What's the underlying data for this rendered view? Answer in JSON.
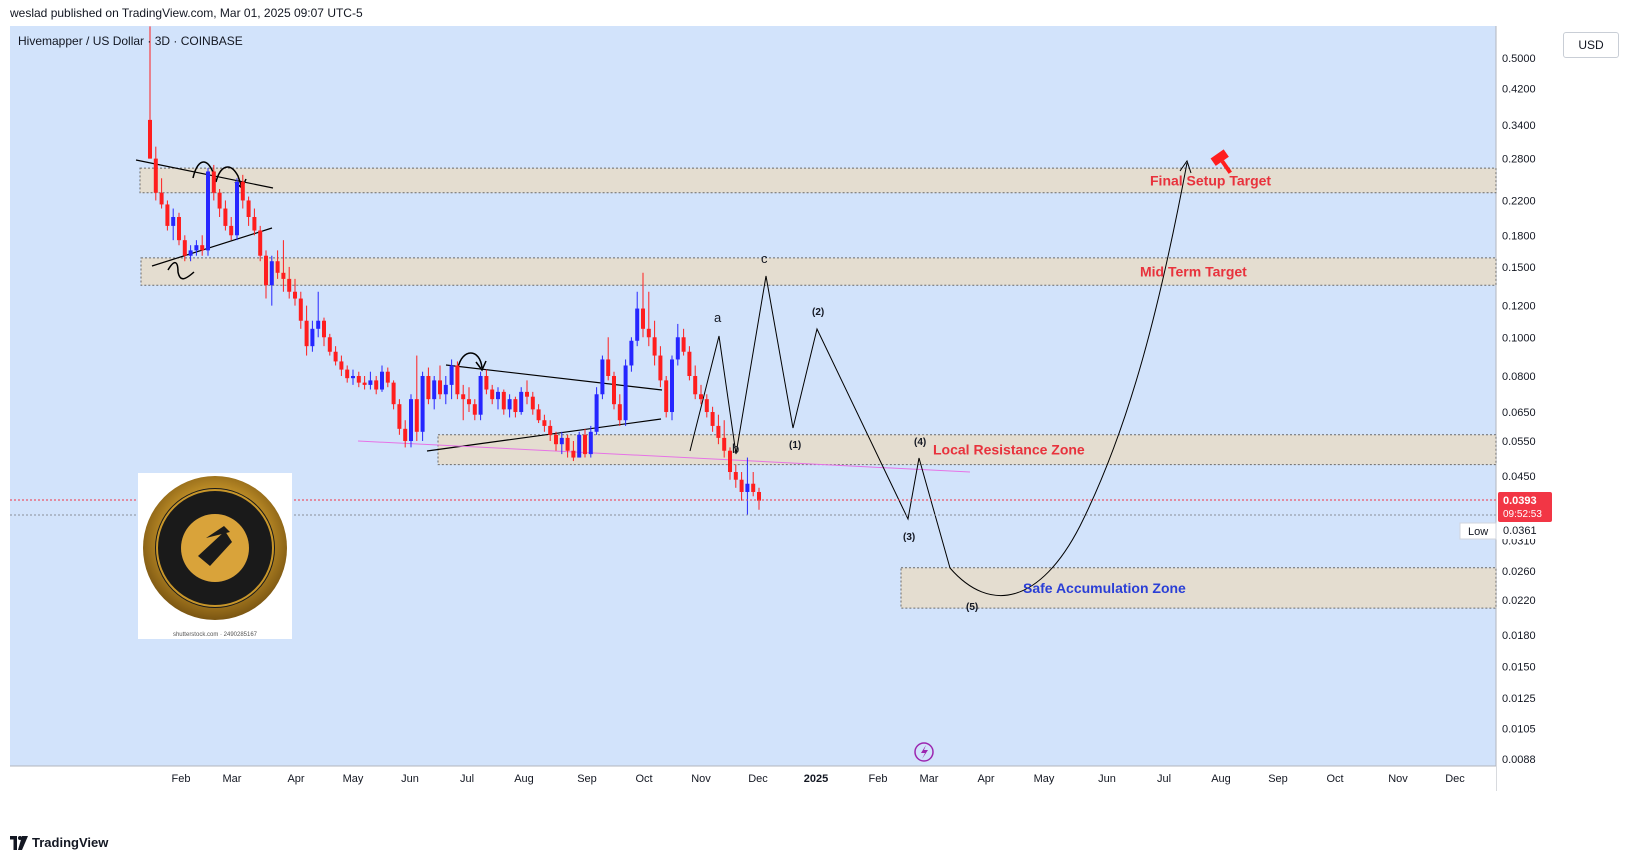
{
  "header": {
    "published": "weslad published on TradingView.com, Mar 01, 2025 09:07 UTC-5"
  },
  "symbol": {
    "line": "Hivemapper / US Dollar · 3D · COINBASE"
  },
  "currency": "USD",
  "footer": {
    "brand": "TradingView"
  },
  "price": {
    "current": "0.0393",
    "countdown": "09:52:53",
    "low_label": "Low",
    "low_value": "0.0361"
  },
  "colors": {
    "bg": "#d2e3fb",
    "up": "#2626ff",
    "down": "#ff1e1e",
    "zone": "#e6dccb",
    "price_tag": "#f23645",
    "accent_purple": "#9c27b0"
  },
  "chart_data": {
    "type": "candlestick",
    "y_scale": "log",
    "y_ticks": [
      "0.5000",
      "0.4200",
      "0.3400",
      "0.2800",
      "0.2200",
      "0.1800",
      "0.1500",
      "0.1200",
      "0.1000",
      "0.0800",
      "0.0650",
      "0.0550",
      "0.0450",
      "0.0310",
      "0.0260",
      "0.0220",
      "0.0180",
      "0.0150",
      "0.0125",
      "0.0105",
      "0.0088"
    ],
    "x_ticks": [
      "Feb",
      "Mar",
      "Apr",
      "May",
      "Jun",
      "Jul",
      "Aug",
      "Sep",
      "Oct",
      "Nov",
      "Dec",
      "2025",
      "Feb",
      "Mar",
      "Apr",
      "May",
      "Jun",
      "Jul",
      "Aug",
      "Sep",
      "Oct",
      "Nov",
      "Dec"
    ],
    "zones": [
      {
        "label": "Final Setup Target",
        "low": 0.23,
        "high": 0.265
      },
      {
        "label": "Mid Term Target",
        "low": 0.135,
        "high": 0.158
      },
      {
        "label": "Local Resistance Zone",
        "low": 0.048,
        "high": 0.057
      },
      {
        "label": "Safe Accumulation Zone",
        "low": 0.021,
        "high": 0.0265
      }
    ],
    "wave_labels": [
      "a",
      "b",
      "c",
      "(1)",
      "(2)",
      "(3)",
      "(4)",
      "(5)"
    ],
    "candles": [
      {
        "o": 0.35,
        "h": 0.6,
        "l": 0.28,
        "c": 0.28
      },
      {
        "o": 0.28,
        "h": 0.3,
        "l": 0.22,
        "c": 0.23
      },
      {
        "o": 0.23,
        "h": 0.25,
        "l": 0.21,
        "c": 0.215
      },
      {
        "o": 0.215,
        "h": 0.22,
        "l": 0.185,
        "c": 0.19
      },
      {
        "o": 0.19,
        "h": 0.21,
        "l": 0.175,
        "c": 0.2
      },
      {
        "o": 0.2,
        "h": 0.205,
        "l": 0.17,
        "c": 0.175
      },
      {
        "o": 0.175,
        "h": 0.18,
        "l": 0.155,
        "c": 0.16
      },
      {
        "o": 0.16,
        "h": 0.17,
        "l": 0.155,
        "c": 0.165
      },
      {
        "o": 0.165,
        "h": 0.175,
        "l": 0.16,
        "c": 0.17
      },
      {
        "o": 0.17,
        "h": 0.18,
        "l": 0.16,
        "c": 0.165
      },
      {
        "o": 0.165,
        "h": 0.265,
        "l": 0.16,
        "c": 0.26
      },
      {
        "o": 0.26,
        "h": 0.27,
        "l": 0.22,
        "c": 0.23
      },
      {
        "o": 0.23,
        "h": 0.235,
        "l": 0.2,
        "c": 0.21
      },
      {
        "o": 0.21,
        "h": 0.22,
        "l": 0.185,
        "c": 0.19
      },
      {
        "o": 0.19,
        "h": 0.2,
        "l": 0.175,
        "c": 0.18
      },
      {
        "o": 0.18,
        "h": 0.25,
        "l": 0.175,
        "c": 0.245
      },
      {
        "o": 0.245,
        "h": 0.255,
        "l": 0.21,
        "c": 0.22
      },
      {
        "o": 0.22,
        "h": 0.225,
        "l": 0.19,
        "c": 0.2
      },
      {
        "o": 0.2,
        "h": 0.21,
        "l": 0.18,
        "c": 0.185
      },
      {
        "o": 0.185,
        "h": 0.19,
        "l": 0.155,
        "c": 0.16
      },
      {
        "o": 0.16,
        "h": 0.165,
        "l": 0.125,
        "c": 0.135
      },
      {
        "o": 0.135,
        "h": 0.16,
        "l": 0.12,
        "c": 0.155
      },
      {
        "o": 0.155,
        "h": 0.165,
        "l": 0.14,
        "c": 0.145
      },
      {
        "o": 0.145,
        "h": 0.175,
        "l": 0.13,
        "c": 0.14
      },
      {
        "o": 0.14,
        "h": 0.15,
        "l": 0.125,
        "c": 0.13
      },
      {
        "o": 0.13,
        "h": 0.14,
        "l": 0.12,
        "c": 0.125
      },
      {
        "o": 0.125,
        "h": 0.13,
        "l": 0.105,
        "c": 0.11
      },
      {
        "o": 0.11,
        "h": 0.12,
        "l": 0.09,
        "c": 0.095
      },
      {
        "o": 0.095,
        "h": 0.11,
        "l": 0.092,
        "c": 0.105
      },
      {
        "o": 0.105,
        "h": 0.13,
        "l": 0.1,
        "c": 0.11
      },
      {
        "o": 0.11,
        "h": 0.112,
        "l": 0.095,
        "c": 0.1
      },
      {
        "o": 0.1,
        "h": 0.102,
        "l": 0.09,
        "c": 0.092
      },
      {
        "o": 0.092,
        "h": 0.095,
        "l": 0.085,
        "c": 0.087
      },
      {
        "o": 0.087,
        "h": 0.09,
        "l": 0.08,
        "c": 0.083
      },
      {
        "o": 0.083,
        "h": 0.085,
        "l": 0.077,
        "c": 0.079
      },
      {
        "o": 0.079,
        "h": 0.083,
        "l": 0.076,
        "c": 0.08
      },
      {
        "o": 0.08,
        "h": 0.082,
        "l": 0.075,
        "c": 0.077
      },
      {
        "o": 0.077,
        "h": 0.08,
        "l": 0.074,
        "c": 0.076
      },
      {
        "o": 0.076,
        "h": 0.082,
        "l": 0.074,
        "c": 0.078
      },
      {
        "o": 0.078,
        "h": 0.08,
        "l": 0.072,
        "c": 0.074
      },
      {
        "o": 0.074,
        "h": 0.085,
        "l": 0.073,
        "c": 0.082
      },
      {
        "o": 0.082,
        "h": 0.084,
        "l": 0.075,
        "c": 0.077
      },
      {
        "o": 0.077,
        "h": 0.078,
        "l": 0.066,
        "c": 0.068
      },
      {
        "o": 0.068,
        "h": 0.07,
        "l": 0.057,
        "c": 0.059
      },
      {
        "o": 0.059,
        "h": 0.062,
        "l": 0.053,
        "c": 0.055
      },
      {
        "o": 0.055,
        "h": 0.072,
        "l": 0.053,
        "c": 0.07
      },
      {
        "o": 0.07,
        "h": 0.09,
        "l": 0.055,
        "c": 0.058
      },
      {
        "o": 0.058,
        "h": 0.082,
        "l": 0.055,
        "c": 0.08
      },
      {
        "o": 0.08,
        "h": 0.084,
        "l": 0.068,
        "c": 0.07
      },
      {
        "o": 0.07,
        "h": 0.08,
        "l": 0.066,
        "c": 0.078
      },
      {
        "o": 0.078,
        "h": 0.085,
        "l": 0.07,
        "c": 0.072
      },
      {
        "o": 0.072,
        "h": 0.08,
        "l": 0.068,
        "c": 0.076
      },
      {
        "o": 0.076,
        "h": 0.088,
        "l": 0.07,
        "c": 0.085
      },
      {
        "o": 0.085,
        "h": 0.087,
        "l": 0.07,
        "c": 0.072
      },
      {
        "o": 0.072,
        "h": 0.076,
        "l": 0.062,
        "c": 0.07
      },
      {
        "o": 0.07,
        "h": 0.075,
        "l": 0.065,
        "c": 0.068
      },
      {
        "o": 0.068,
        "h": 0.07,
        "l": 0.062,
        "c": 0.064
      },
      {
        "o": 0.064,
        "h": 0.082,
        "l": 0.062,
        "c": 0.08
      },
      {
        "o": 0.08,
        "h": 0.083,
        "l": 0.072,
        "c": 0.074
      },
      {
        "o": 0.074,
        "h": 0.076,
        "l": 0.068,
        "c": 0.07
      },
      {
        "o": 0.07,
        "h": 0.075,
        "l": 0.066,
        "c": 0.073
      },
      {
        "o": 0.073,
        "h": 0.074,
        "l": 0.064,
        "c": 0.066
      },
      {
        "o": 0.066,
        "h": 0.072,
        "l": 0.063,
        "c": 0.07
      },
      {
        "o": 0.07,
        "h": 0.071,
        "l": 0.063,
        "c": 0.065
      },
      {
        "o": 0.065,
        "h": 0.075,
        "l": 0.064,
        "c": 0.073
      },
      {
        "o": 0.073,
        "h": 0.078,
        "l": 0.068,
        "c": 0.071
      },
      {
        "o": 0.071,
        "h": 0.073,
        "l": 0.064,
        "c": 0.066
      },
      {
        "o": 0.066,
        "h": 0.068,
        "l": 0.061,
        "c": 0.062
      },
      {
        "o": 0.062,
        "h": 0.064,
        "l": 0.058,
        "c": 0.06
      },
      {
        "o": 0.06,
        "h": 0.062,
        "l": 0.055,
        "c": 0.057
      },
      {
        "o": 0.057,
        "h": 0.058,
        "l": 0.052,
        "c": 0.054
      },
      {
        "o": 0.054,
        "h": 0.058,
        "l": 0.051,
        "c": 0.056
      },
      {
        "o": 0.056,
        "h": 0.057,
        "l": 0.05,
        "c": 0.052
      },
      {
        "o": 0.052,
        "h": 0.055,
        "l": 0.049,
        "c": 0.05
      },
      {
        "o": 0.05,
        "h": 0.058,
        "l": 0.05,
        "c": 0.057
      },
      {
        "o": 0.057,
        "h": 0.059,
        "l": 0.05,
        "c": 0.051
      },
      {
        "o": 0.051,
        "h": 0.06,
        "l": 0.05,
        "c": 0.058
      },
      {
        "o": 0.058,
        "h": 0.075,
        "l": 0.057,
        "c": 0.072
      },
      {
        "o": 0.072,
        "h": 0.09,
        "l": 0.07,
        "c": 0.088
      },
      {
        "o": 0.088,
        "h": 0.1,
        "l": 0.078,
        "c": 0.08
      },
      {
        "o": 0.08,
        "h": 0.082,
        "l": 0.066,
        "c": 0.068
      },
      {
        "o": 0.068,
        "h": 0.072,
        "l": 0.06,
        "c": 0.062
      },
      {
        "o": 0.062,
        "h": 0.088,
        "l": 0.06,
        "c": 0.085
      },
      {
        "o": 0.085,
        "h": 0.1,
        "l": 0.082,
        "c": 0.098
      },
      {
        "o": 0.098,
        "h": 0.13,
        "l": 0.095,
        "c": 0.118
      },
      {
        "o": 0.118,
        "h": 0.145,
        "l": 0.1,
        "c": 0.105
      },
      {
        "o": 0.105,
        "h": 0.13,
        "l": 0.095,
        "c": 0.1
      },
      {
        "o": 0.1,
        "h": 0.11,
        "l": 0.085,
        "c": 0.09
      },
      {
        "o": 0.09,
        "h": 0.095,
        "l": 0.075,
        "c": 0.078
      },
      {
        "o": 0.078,
        "h": 0.08,
        "l": 0.063,
        "c": 0.065
      },
      {
        "o": 0.065,
        "h": 0.09,
        "l": 0.062,
        "c": 0.088
      },
      {
        "o": 0.088,
        "h": 0.108,
        "l": 0.085,
        "c": 0.1
      },
      {
        "o": 0.1,
        "h": 0.105,
        "l": 0.09,
        "c": 0.092
      },
      {
        "o": 0.092,
        "h": 0.095,
        "l": 0.078,
        "c": 0.08
      },
      {
        "o": 0.08,
        "h": 0.085,
        "l": 0.07,
        "c": 0.072
      },
      {
        "o": 0.072,
        "h": 0.076,
        "l": 0.068,
        "c": 0.07
      },
      {
        "o": 0.07,
        "h": 0.072,
        "l": 0.063,
        "c": 0.065
      },
      {
        "o": 0.065,
        "h": 0.067,
        "l": 0.058,
        "c": 0.06
      },
      {
        "o": 0.06,
        "h": 0.064,
        "l": 0.054,
        "c": 0.056
      },
      {
        "o": 0.056,
        "h": 0.062,
        "l": 0.05,
        "c": 0.052
      },
      {
        "o": 0.052,
        "h": 0.053,
        "l": 0.044,
        "c": 0.046
      },
      {
        "o": 0.046,
        "h": 0.048,
        "l": 0.042,
        "c": 0.044
      },
      {
        "o": 0.044,
        "h": 0.046,
        "l": 0.039,
        "c": 0.041
      },
      {
        "o": 0.041,
        "h": 0.05,
        "l": 0.036,
        "c": 0.043
      },
      {
        "o": 0.043,
        "h": 0.046,
        "l": 0.04,
        "c": 0.041
      },
      {
        "o": 0.041,
        "h": 0.042,
        "l": 0.037,
        "c": 0.039
      }
    ]
  }
}
